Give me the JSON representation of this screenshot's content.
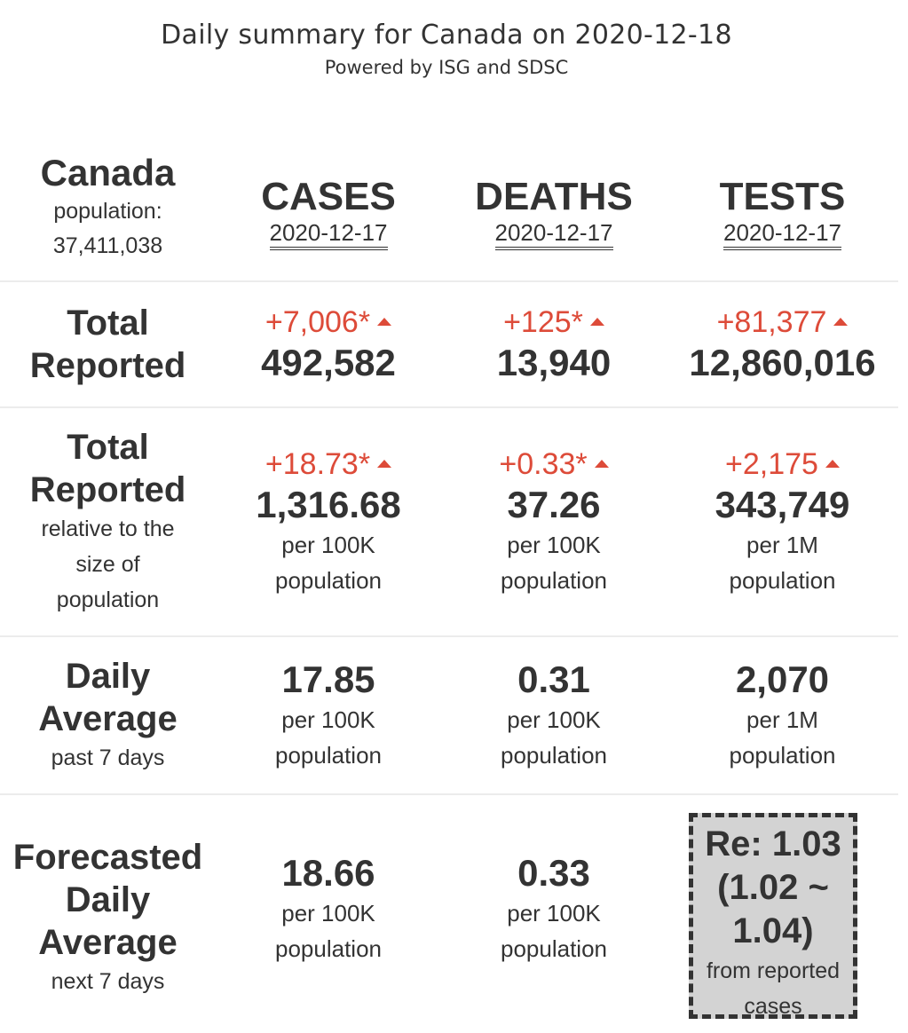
{
  "header": {
    "title": "Daily summary for Canada on 2020-12-18",
    "subtitle": "Powered by ISG and SDSC"
  },
  "region": {
    "name": "Canada",
    "population_label": "population:",
    "population": "37,411,038"
  },
  "columns": [
    {
      "label": "CASES",
      "date": "2020-12-17"
    },
    {
      "label": "DEATHS",
      "date": "2020-12-17"
    },
    {
      "label": "TESTS",
      "date": "2020-12-17"
    }
  ],
  "rows": {
    "total": {
      "label_line1": "Total",
      "label_line2": "Reported",
      "cases": {
        "delta": "+7,006*",
        "value": "492,582"
      },
      "deaths": {
        "delta": "+125*",
        "value": "13,940"
      },
      "tests": {
        "delta": "+81,377",
        "value": "12,860,016"
      }
    },
    "relative": {
      "label_line1": "Total",
      "label_line2": "Reported",
      "sub_line1": "relative to the",
      "sub_line2": "size of",
      "sub_line3": "population",
      "cases": {
        "delta": "+18.73*",
        "value": "1,316.68",
        "unit1": "per 100K",
        "unit2": "population"
      },
      "deaths": {
        "delta": "+0.33*",
        "value": "37.26",
        "unit1": "per 100K",
        "unit2": "population"
      },
      "tests": {
        "delta": "+2,175",
        "value": "343,749",
        "unit1": "per 1M",
        "unit2": "population"
      }
    },
    "daily": {
      "label_line1": "Daily",
      "label_line2": "Average",
      "sub": "past 7 days",
      "cases": {
        "value": "17.85",
        "unit1": "per 100K",
        "unit2": "population"
      },
      "deaths": {
        "value": "0.31",
        "unit1": "per 100K",
        "unit2": "population"
      },
      "tests": {
        "value": "2,070",
        "unit1": "per 1M",
        "unit2": "population"
      }
    },
    "forecast": {
      "label_line1": "Forecasted",
      "label_line2": "Daily",
      "label_line3": "Average",
      "sub": "next 7 days",
      "cases": {
        "value": "18.66",
        "unit1": "per 100K",
        "unit2": "population"
      },
      "deaths": {
        "value": "0.33",
        "unit1": "per 100K",
        "unit2": "population"
      },
      "re": {
        "line1": "Re: 1.03",
        "line2": "(1.02 ~",
        "line3": "1.04)",
        "note1": "from reported",
        "note2": "cases"
      }
    }
  },
  "colors": {
    "increase": "#dd4b39",
    "text": "#333333",
    "re_box": "#d3d3d3",
    "separator": "#ececec"
  },
  "icons": {
    "increase": "triangle-up-icon"
  }
}
